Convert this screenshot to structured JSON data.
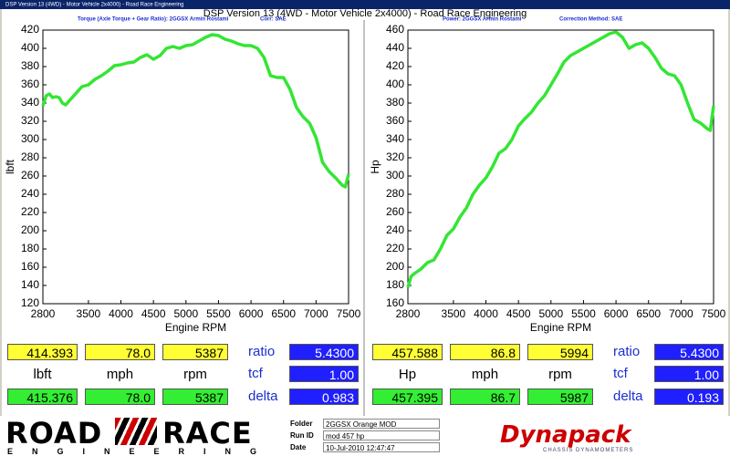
{
  "header": {
    "window_title": "DSP Version 13 (4WD) - Motor Vehicle 2x4000) - Road Race Engineering",
    "title": "DSP Version 13 (4WD - Motor Vehicle 2x4000) - Road Race Engineering"
  },
  "chart_data": [
    {
      "type": "line",
      "subtitle": "Torque (Axle Torque + Gear Ratio): 2GGSX Armin Rostami",
      "correction": "Corr: SAE",
      "x_label": "Engine RPM",
      "y_label": "lbft",
      "x": [
        2800,
        2850,
        2900,
        2950,
        3000,
        3050,
        3100,
        3150,
        3200,
        3300,
        3400,
        3500,
        3600,
        3700,
        3800,
        3900,
        4000,
        4100,
        4200,
        4300,
        4400,
        4500,
        4600,
        4700,
        4800,
        4900,
        5000,
        5100,
        5200,
        5300,
        5400,
        5500,
        5600,
        5700,
        5800,
        5900,
        6000,
        6100,
        6200,
        6300,
        6400,
        6500,
        6600,
        6700,
        6800,
        6900,
        7000,
        7100,
        7200,
        7300,
        7400,
        7450,
        7500
      ],
      "series": [
        {
          "name": "Torque",
          "color": "#33e633",
          "values": [
            337,
            348,
            350,
            346,
            347,
            346,
            340,
            338,
            342,
            350,
            358,
            360,
            366,
            370,
            375,
            381,
            382,
            384,
            385,
            390,
            393,
            388,
            392,
            400,
            402,
            400,
            403,
            404,
            408,
            412,
            415,
            414,
            410,
            408,
            405,
            403,
            403,
            400,
            390,
            370,
            368,
            368,
            355,
            335,
            325,
            318,
            302,
            275,
            265,
            258,
            250,
            248,
            262
          ]
        }
      ],
      "xlim": [
        2800,
        7500
      ],
      "xticks": [
        2800,
        3500,
        4000,
        4500,
        5000,
        5500,
        6000,
        6500,
        7000,
        7500
      ],
      "ylim": [
        120,
        420
      ],
      "yticks": [
        120,
        140,
        160,
        180,
        200,
        220,
        240,
        260,
        280,
        300,
        320,
        340,
        360,
        380,
        400,
        420
      ],
      "grid": false
    },
    {
      "type": "line",
      "subtitle": "Power: 2GGSX Armin Rostami",
      "correction": "Correction Method: SAE",
      "x_label": "Engine RPM",
      "y_label": "Hp",
      "x": [
        2800,
        2850,
        2900,
        3000,
        3100,
        3200,
        3300,
        3400,
        3500,
        3600,
        3700,
        3800,
        3900,
        4000,
        4100,
        4200,
        4300,
        4400,
        4500,
        4600,
        4700,
        4800,
        4900,
        5000,
        5100,
        5200,
        5300,
        5400,
        5500,
        5600,
        5700,
        5800,
        5900,
        6000,
        6100,
        6200,
        6300,
        6400,
        6500,
        6600,
        6700,
        6800,
        6900,
        7000,
        7100,
        7200,
        7300,
        7400,
        7450,
        7500
      ],
      "series": [
        {
          "name": "Power",
          "color": "#33e633",
          "values": [
            178,
            190,
            193,
            198,
            205,
            208,
            220,
            235,
            242,
            255,
            265,
            280,
            290,
            298,
            310,
            325,
            330,
            340,
            355,
            363,
            370,
            380,
            388,
            400,
            412,
            425,
            432,
            436,
            440,
            444,
            448,
            452,
            456,
            458,
            452,
            440,
            444,
            446,
            440,
            430,
            418,
            412,
            410,
            400,
            380,
            362,
            358,
            352,
            350,
            377
          ]
        }
      ],
      "xlim": [
        2800,
        7500
      ],
      "xticks": [
        2800,
        3500,
        4000,
        4500,
        5000,
        5500,
        6000,
        6500,
        7000,
        7500
      ],
      "ylim": [
        160,
        460
      ],
      "yticks": [
        160,
        180,
        200,
        220,
        240,
        260,
        280,
        300,
        320,
        340,
        360,
        380,
        400,
        420,
        440,
        460
      ],
      "grid": false
    }
  ],
  "readouts": [
    {
      "top": [
        "414.393",
        "78.0",
        "5387"
      ],
      "units": [
        "lbft",
        "mph",
        "rpm"
      ],
      "bottom": [
        "415.376",
        "78.0",
        "5387"
      ],
      "labels": [
        "ratio",
        "tcf",
        "delta"
      ],
      "factors": [
        "5.4300",
        "1.00",
        "0.983"
      ]
    },
    {
      "top": [
        "457.588",
        "86.8",
        "5994"
      ],
      "units": [
        "Hp",
        "mph",
        "rpm"
      ],
      "bottom": [
        "457.395",
        "86.7",
        "5987"
      ],
      "labels": [
        "ratio",
        "tcf",
        "delta"
      ],
      "factors": [
        "5.4300",
        "1.00",
        "0.193"
      ]
    }
  ],
  "footer": {
    "logo": {
      "left": "ROAD",
      "right": "RACE",
      "tagline": "ENGINEERING"
    },
    "fields": [
      {
        "label": "Folder",
        "value": "2GGSX Orange MOD"
      },
      {
        "label": "Run ID",
        "value": "mod 457 hp"
      },
      {
        "label": "Date",
        "value": "10-Jul-2010 12:47:47"
      }
    ],
    "brand": {
      "name": "Dynapack",
      "tagline": "CHASSIS DYNAMOMETERS"
    }
  }
}
